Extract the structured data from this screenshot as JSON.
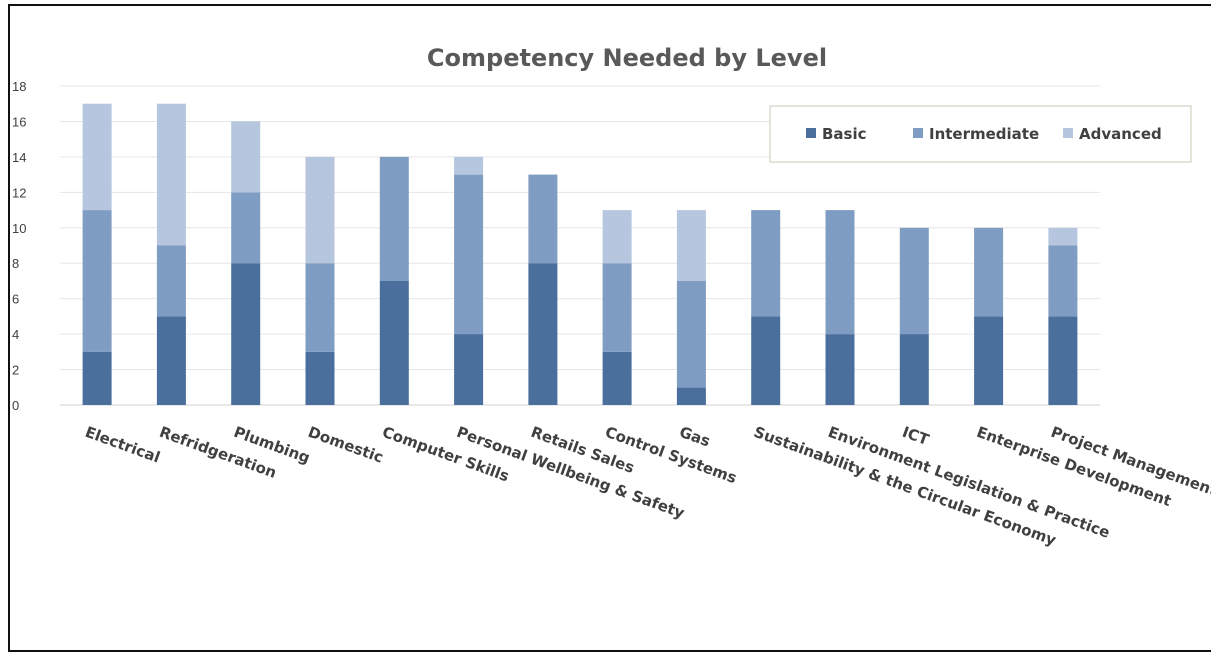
{
  "chart_data": {
    "type": "bar",
    "stacked": true,
    "title": "Competency Needed by Level",
    "xlabel": "",
    "ylabel": "",
    "ylim": [
      0,
      18
    ],
    "yticks": [
      0,
      2,
      4,
      6,
      8,
      10,
      12,
      14,
      16,
      18
    ],
    "grid": true,
    "legend_position": "top-right",
    "categories": [
      "Electrical",
      "Refridgeration",
      "Plumbing",
      "Domestic",
      "Computer Skills",
      "Personal Wellbeing & Safety",
      "Retails Sales",
      "Control Systems",
      "Gas",
      "Sustainability & the Circular Economy",
      "Environment Legislation & Practice",
      "ICT",
      "Enterprise Development",
      "Project Management"
    ],
    "series": [
      {
        "name": "Basic",
        "color": "#4a6f9c",
        "values": [
          3,
          5,
          8,
          3,
          7,
          4,
          8,
          3,
          1,
          5,
          4,
          4,
          5,
          5
        ]
      },
      {
        "name": "Intermediate",
        "color": "#7f9dc3",
        "values": [
          8,
          4,
          4,
          5,
          7,
          9,
          5,
          5,
          6,
          6,
          7,
          6,
          5,
          4
        ]
      },
      {
        "name": "Advanced",
        "color": "#b5c6de",
        "values": [
          6,
          8,
          4,
          6,
          0,
          1,
          0,
          3,
          4,
          0,
          0,
          0,
          0,
          1
        ]
      }
    ]
  }
}
